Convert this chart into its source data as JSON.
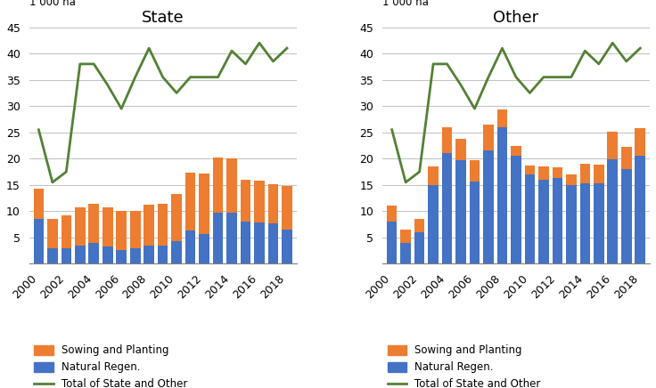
{
  "years": [
    2000,
    2001,
    2002,
    2003,
    2004,
    2005,
    2006,
    2007,
    2008,
    2009,
    2010,
    2011,
    2012,
    2013,
    2014,
    2015,
    2016,
    2017,
    2018
  ],
  "state_natural": [
    8.5,
    3.0,
    3.0,
    3.5,
    4.0,
    3.3,
    2.7,
    3.0,
    3.5,
    3.5,
    4.3,
    6.3,
    5.7,
    9.8,
    9.7,
    8.1,
    7.9,
    7.7,
    6.5
  ],
  "state_sowing": [
    5.8,
    5.5,
    6.3,
    7.2,
    7.5,
    7.5,
    7.3,
    7.0,
    7.8,
    8.0,
    9.0,
    11.0,
    11.5,
    10.5,
    10.3,
    7.9,
    8.0,
    7.5,
    8.3
  ],
  "other_natural": [
    8.0,
    4.0,
    6.0,
    15.0,
    21.0,
    19.7,
    15.7,
    21.5,
    26.0,
    20.5,
    17.0,
    16.0,
    16.3,
    15.0,
    15.3,
    15.3,
    19.8,
    18.0,
    20.5
  ],
  "other_sowing": [
    3.0,
    2.5,
    2.5,
    3.5,
    5.0,
    4.0,
    4.0,
    5.0,
    3.3,
    2.0,
    1.7,
    2.5,
    2.0,
    2.0,
    3.7,
    3.5,
    5.3,
    4.3,
    5.3
  ],
  "total_line": [
    25.5,
    15.5,
    17.5,
    38.0,
    38.0,
    34.0,
    29.5,
    35.5,
    41.0,
    35.5,
    32.5,
    35.5,
    35.5,
    35.5,
    40.5,
    38.0,
    42.0,
    38.5,
    41.0
  ],
  "bar_color_natural": "#4472C4",
  "bar_color_sowing": "#ED7D31",
  "line_color": "#538135",
  "title_left": "State",
  "title_right": "Other",
  "ylabel": "1 000 ha",
  "ylim": [
    0,
    45
  ],
  "yticks": [
    0,
    5,
    10,
    15,
    20,
    25,
    30,
    35,
    40,
    45
  ],
  "legend_sowing": "Sowing and Planting",
  "legend_natural": "Natural Regen.",
  "legend_line": "Total of State and Other"
}
